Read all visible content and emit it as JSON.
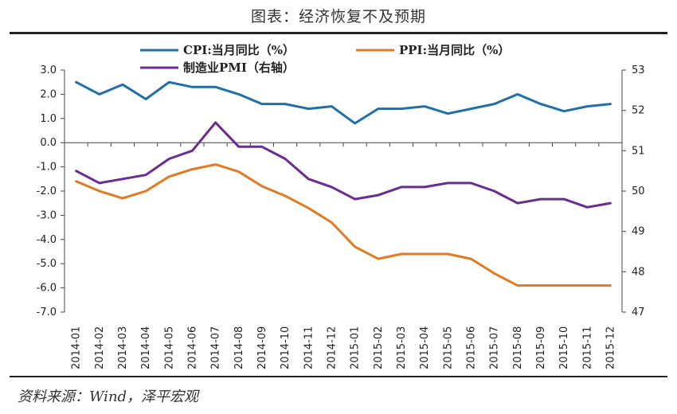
{
  "title": "图表：经济恢复不及预期",
  "source": "资料来源：Wind，泽平宏观",
  "chart_data": {
    "type": "line",
    "categories": [
      "2014-01",
      "2014-02",
      "2014-03",
      "2014-04",
      "2014-05",
      "2014-06",
      "2014-07",
      "2014-08",
      "2014-09",
      "2014-10",
      "2014-11",
      "2014-12",
      "2015-01",
      "2015-02",
      "2015-03",
      "2015-04",
      "2015-05",
      "2015-06",
      "2015-07",
      "2015-08",
      "2015-09",
      "2015-10",
      "2015-11",
      "2015-12"
    ],
    "series": [
      {
        "name": "CPI:当月同比（%）",
        "axis": "left",
        "color": "#1f6fa8",
        "values": [
          2.5,
          2.0,
          2.4,
          1.8,
          2.5,
          2.3,
          2.3,
          2.0,
          1.6,
          1.6,
          1.4,
          1.5,
          0.8,
          1.4,
          1.4,
          1.5,
          1.2,
          1.4,
          1.6,
          2.0,
          1.6,
          1.3,
          1.5,
          1.6
        ]
      },
      {
        "name": "PPI:当月同比（%）",
        "axis": "left",
        "color": "#e07b22",
        "values": [
          -1.6,
          -2.0,
          -2.3,
          -2.0,
          -1.4,
          -1.1,
          -0.9,
          -1.2,
          -1.8,
          -2.2,
          -2.7,
          -3.3,
          -4.3,
          -4.8,
          -4.6,
          -4.6,
          -4.6,
          -4.8,
          -5.4,
          -5.9,
          -5.9,
          -5.9,
          -5.9,
          -5.9
        ]
      },
      {
        "name": "制造业PMI（右轴）",
        "axis": "right",
        "color": "#6a2c91",
        "values": [
          50.5,
          50.2,
          50.3,
          50.4,
          50.8,
          51.0,
          51.7,
          51.1,
          51.1,
          50.8,
          50.3,
          50.1,
          49.8,
          49.9,
          50.1,
          50.1,
          50.2,
          50.2,
          50.0,
          49.7,
          49.8,
          49.8,
          49.6,
          49.7
        ]
      }
    ],
    "y_left": {
      "min": -7.0,
      "max": 3.0,
      "step": 1.0,
      "ticks": [
        "3.0",
        "2.0",
        "1.0",
        "0.0",
        "-1.0",
        "-2.0",
        "-3.0",
        "-4.0",
        "-5.0",
        "-6.0",
        "-7.0"
      ]
    },
    "y_right": {
      "min": 47,
      "max": 53,
      "step": 1,
      "ticks": [
        "53",
        "52",
        "51",
        "50",
        "49",
        "48",
        "47"
      ]
    },
    "legend": {
      "placement": "top"
    },
    "grid": false
  }
}
